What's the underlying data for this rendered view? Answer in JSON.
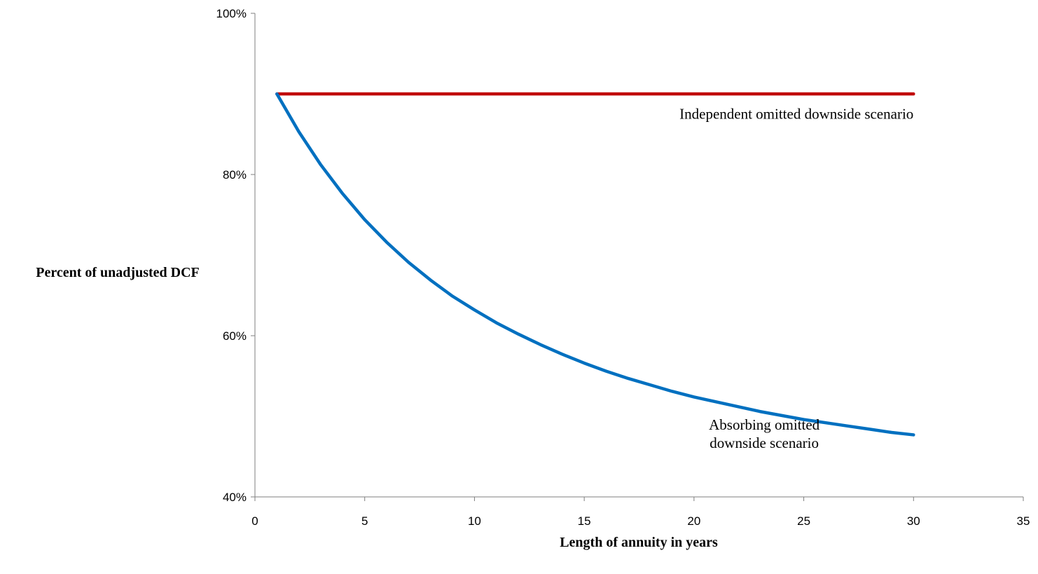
{
  "chart_data": {
    "type": "line",
    "title": "",
    "xlabel": "Length of annuity in years",
    "ylabel": "Percent of unadjusted DCF",
    "xlim": [
      0,
      35
    ],
    "ylim": [
      40,
      100
    ],
    "x_ticks": [
      0,
      5,
      10,
      15,
      20,
      25,
      30,
      35
    ],
    "y_ticks": [
      40,
      60,
      80,
      100
    ],
    "y_tick_format": "percent",
    "grid": false,
    "legend": "none",
    "series": [
      {
        "key": "independent",
        "color": "#c00000",
        "x": [
          1,
          30
        ],
        "y": [
          90,
          90
        ]
      },
      {
        "key": "absorbing",
        "color": "#0070c0",
        "x": [
          1,
          2,
          3,
          4,
          5,
          6,
          7,
          8,
          9,
          10,
          11,
          12,
          13,
          14,
          15,
          16,
          17,
          18,
          19,
          20,
          21,
          22,
          23,
          24,
          25,
          26,
          27,
          28,
          29,
          30
        ],
        "y": [
          90,
          85.3,
          81.2,
          77.6,
          74.4,
          71.6,
          69.1,
          66.9,
          64.9,
          63.2,
          61.6,
          60.2,
          58.9,
          57.7,
          56.6,
          55.6,
          54.7,
          53.9,
          53.1,
          52.4,
          51.8,
          51.2,
          50.6,
          50.1,
          49.6,
          49.2,
          48.8,
          48.4,
          48.0,
          47.7
        ]
      }
    ],
    "annotations": [
      {
        "key": "independent",
        "lines": [
          "Independent omitted downside scenario"
        ],
        "x": 30,
        "y": 86.9,
        "anchor": "end"
      },
      {
        "key": "absorbing",
        "lines": [
          "Absorbing omitted",
          "downside scenario"
        ],
        "x": 23.2,
        "y": 47.2,
        "anchor": "middle"
      }
    ]
  }
}
